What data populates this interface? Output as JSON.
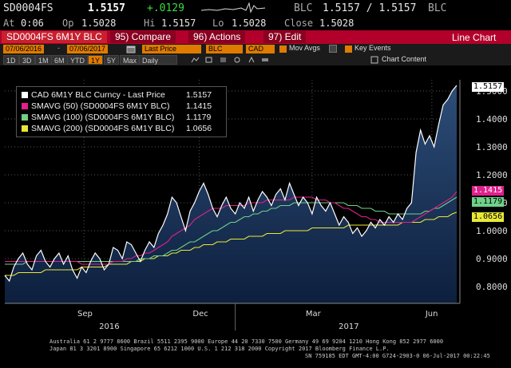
{
  "header": {
    "ticker": "SD0004FS",
    "last": "1.5157",
    "change": "+.0129",
    "source": "BLC",
    "bid_ask": "1.5157 / 1.5157",
    "source2": "BLC",
    "at_label": "At",
    "at_time": "0:06",
    "op_label": "Op",
    "op_val": "1.5028",
    "hi_label": "Hi",
    "hi_val": "1.5157",
    "lo_label": "Lo",
    "lo_val": "1.5028",
    "close_label": "Close",
    "close_val": "1.5028"
  },
  "toolbar": {
    "security": "SD0004FS 6M1Y BLC",
    "compare": "95) Compare",
    "actions": "96) Actions",
    "edit": "97) Edit",
    "view": "Line Chart"
  },
  "controls": {
    "start_date": "07/06/2016",
    "end_date": "07/06/2017",
    "field": "Last Price",
    "source": "BLC",
    "currency": "CAD",
    "mov_avgs": "Mov Avgs",
    "key_events": "Key Events"
  },
  "periods": [
    "1D",
    "3D",
    "1M",
    "6M",
    "YTD",
    "1Y",
    "5Y",
    "Max"
  ],
  "active_period": "1Y",
  "frequency": "Daily",
  "chart_content": "Chart Content",
  "legend": [
    {
      "label": "CAD 6M1Y BLC Curncy - Last Price",
      "value": "1.5157",
      "color": "#ffffff"
    },
    {
      "label": "SMAVG (50) (SD0004FS 6M1Y BLC)",
      "value": "1.1415",
      "color": "#e0208c"
    },
    {
      "label": "SMAVG (100) (SD0004FS 6M1Y BLC)",
      "value": "1.1179",
      "color": "#6fd08a"
    },
    {
      "label": "SMAVG (200) (SD0004FS 6M1Y BLC)",
      "value": "1.0656",
      "color": "#e8e838"
    }
  ],
  "price_tags": [
    {
      "value": "1.5157",
      "bg": "#ffffff",
      "fg": "#000000",
      "y": 1.5157
    },
    {
      "value": "1.1415",
      "bg": "#e0208c",
      "fg": "#ffffff",
      "y": 1.1415
    },
    {
      "value": "1.1179",
      "bg": "#6fd08a",
      "fg": "#000000",
      "y": 1.1179
    },
    {
      "value": "1.0656",
      "bg": "#e8e838",
      "fg": "#000000",
      "y": 1.0656
    }
  ],
  "chart_data": {
    "type": "area",
    "title": "",
    "xlabel": "",
    "ylabel": "",
    "ylim": [
      0.74,
      1.54
    ],
    "yticks": [
      0.8,
      0.9,
      1.0,
      1.1,
      1.2,
      1.3,
      1.4,
      1.5
    ],
    "ytick_labels": [
      "0.8000",
      "0.9000",
      "1.0000",
      "1.1000",
      "1.2000",
      "1.3000",
      "1.4000",
      "1.5000"
    ],
    "month_labels": [
      {
        "label": "Sep",
        "x": 0.175
      },
      {
        "label": "Dec",
        "x": 0.43
      },
      {
        "label": "Mar",
        "x": 0.68
      },
      {
        "label": "Jun",
        "x": 0.945
      }
    ],
    "year_labels": [
      {
        "label": "2016",
        "x": 0.23
      },
      {
        "label": "2017",
        "x": 0.76
      }
    ],
    "x": [
      0,
      0.01,
      0.02,
      0.03,
      0.04,
      0.05,
      0.06,
      0.07,
      0.08,
      0.09,
      0.1,
      0.11,
      0.12,
      0.13,
      0.14,
      0.15,
      0.16,
      0.17,
      0.18,
      0.19,
      0.2,
      0.21,
      0.22,
      0.23,
      0.24,
      0.25,
      0.26,
      0.27,
      0.28,
      0.29,
      0.3,
      0.31,
      0.32,
      0.33,
      0.34,
      0.35,
      0.36,
      0.37,
      0.38,
      0.39,
      0.4,
      0.41,
      0.42,
      0.43,
      0.44,
      0.45,
      0.46,
      0.47,
      0.48,
      0.49,
      0.5,
      0.51,
      0.52,
      0.53,
      0.54,
      0.55,
      0.56,
      0.57,
      0.58,
      0.59,
      0.6,
      0.61,
      0.62,
      0.63,
      0.64,
      0.65,
      0.66,
      0.67,
      0.68,
      0.69,
      0.7,
      0.71,
      0.72,
      0.73,
      0.74,
      0.75,
      0.76,
      0.77,
      0.78,
      0.79,
      0.8,
      0.81,
      0.82,
      0.83,
      0.84,
      0.85,
      0.86,
      0.87,
      0.88,
      0.89,
      0.9,
      0.91,
      0.92,
      0.93,
      0.94,
      0.95,
      0.96,
      0.97,
      0.98,
      0.99,
      1.0
    ],
    "series": [
      {
        "name": "CAD 6M1Y BLC Curncy - Last Price",
        "color": "#ffffff",
        "values": [
          0.84,
          0.82,
          0.87,
          0.9,
          0.92,
          0.88,
          0.86,
          0.91,
          0.93,
          0.89,
          0.87,
          0.9,
          0.92,
          0.88,
          0.91,
          0.86,
          0.83,
          0.87,
          0.85,
          0.89,
          0.92,
          0.9,
          0.86,
          0.88,
          0.94,
          0.93,
          0.9,
          0.96,
          0.95,
          0.92,
          0.89,
          0.93,
          0.96,
          0.94,
          0.99,
          1.02,
          1.06,
          1.12,
          1.1,
          1.05,
          1.0,
          1.07,
          1.1,
          1.14,
          1.17,
          1.13,
          1.08,
          1.05,
          1.09,
          1.12,
          1.08,
          1.06,
          1.1,
          1.08,
          1.12,
          1.07,
          1.11,
          1.14,
          1.12,
          1.09,
          1.13,
          1.15,
          1.11,
          1.17,
          1.13,
          1.09,
          1.12,
          1.1,
          1.06,
          1.12,
          1.09,
          1.07,
          1.1,
          1.06,
          1.02,
          1.05,
          1.03,
          0.99,
          1.01,
          0.98,
          1.0,
          1.03,
          1.01,
          1.04,
          1.02,
          1.05,
          1.03,
          1.06,
          1.04,
          1.08,
          1.1,
          1.28,
          1.36,
          1.31,
          1.34,
          1.3,
          1.38,
          1.45,
          1.47,
          1.5,
          1.52
        ]
      },
      {
        "name": "SMAVG (50) (SD0004FS 6M1Y BLC)",
        "color": "#e0208c",
        "values": [
          0.89,
          0.89,
          0.89,
          0.89,
          0.89,
          0.89,
          0.89,
          0.89,
          0.89,
          0.89,
          0.89,
          0.89,
          0.89,
          0.89,
          0.89,
          0.89,
          0.89,
          0.88,
          0.88,
          0.88,
          0.88,
          0.88,
          0.88,
          0.88,
          0.89,
          0.89,
          0.89,
          0.9,
          0.9,
          0.91,
          0.91,
          0.92,
          0.92,
          0.93,
          0.94,
          0.95,
          0.96,
          0.98,
          0.99,
          1.0,
          1.01,
          1.02,
          1.04,
          1.05,
          1.06,
          1.07,
          1.08,
          1.08,
          1.08,
          1.09,
          1.09,
          1.09,
          1.09,
          1.09,
          1.1,
          1.1,
          1.1,
          1.1,
          1.11,
          1.11,
          1.11,
          1.11,
          1.11,
          1.11,
          1.12,
          1.12,
          1.12,
          1.12,
          1.12,
          1.11,
          1.11,
          1.11,
          1.1,
          1.1,
          1.09,
          1.08,
          1.08,
          1.07,
          1.06,
          1.05,
          1.05,
          1.04,
          1.04,
          1.03,
          1.03,
          1.03,
          1.03,
          1.03,
          1.03,
          1.03,
          1.03,
          1.04,
          1.05,
          1.06,
          1.07,
          1.08,
          1.09,
          1.1,
          1.11,
          1.12,
          1.14
        ]
      },
      {
        "name": "SMAVG (100) (SD0004FS 6M1Y BLC)",
        "color": "#6fd08a",
        "values": [
          0.88,
          0.88,
          0.88,
          0.88,
          0.88,
          0.89,
          0.89,
          0.89,
          0.89,
          0.89,
          0.89,
          0.89,
          0.89,
          0.89,
          0.89,
          0.89,
          0.89,
          0.89,
          0.89,
          0.89,
          0.89,
          0.89,
          0.89,
          0.89,
          0.89,
          0.89,
          0.89,
          0.89,
          0.89,
          0.89,
          0.9,
          0.9,
          0.9,
          0.91,
          0.91,
          0.91,
          0.92,
          0.93,
          0.93,
          0.94,
          0.95,
          0.96,
          0.96,
          0.97,
          0.98,
          0.99,
          1.0,
          1.0,
          1.01,
          1.02,
          1.03,
          1.03,
          1.04,
          1.05,
          1.05,
          1.06,
          1.06,
          1.07,
          1.07,
          1.08,
          1.08,
          1.09,
          1.09,
          1.09,
          1.1,
          1.1,
          1.1,
          1.1,
          1.1,
          1.1,
          1.1,
          1.1,
          1.1,
          1.1,
          1.1,
          1.1,
          1.09,
          1.09,
          1.09,
          1.08,
          1.08,
          1.08,
          1.07,
          1.07,
          1.07,
          1.06,
          1.06,
          1.06,
          1.06,
          1.06,
          1.06,
          1.06,
          1.06,
          1.07,
          1.07,
          1.08,
          1.08,
          1.09,
          1.1,
          1.11,
          1.12
        ]
      },
      {
        "name": "SMAVG (200) (SD0004FS 6M1Y BLC)",
        "color": "#e8e838",
        "values": [
          0.84,
          0.84,
          0.84,
          0.85,
          0.85,
          0.85,
          0.85,
          0.85,
          0.85,
          0.86,
          0.86,
          0.86,
          0.86,
          0.86,
          0.86,
          0.86,
          0.86,
          0.87,
          0.87,
          0.87,
          0.87,
          0.87,
          0.87,
          0.88,
          0.88,
          0.88,
          0.88,
          0.88,
          0.89,
          0.89,
          0.89,
          0.9,
          0.9,
          0.9,
          0.91,
          0.91,
          0.91,
          0.92,
          0.92,
          0.93,
          0.93,
          0.93,
          0.94,
          0.94,
          0.95,
          0.95,
          0.95,
          0.96,
          0.96,
          0.96,
          0.97,
          0.97,
          0.97,
          0.97,
          0.98,
          0.98,
          0.98,
          0.98,
          0.99,
          0.99,
          0.99,
          0.99,
          1.0,
          1.0,
          1.0,
          1.0,
          1.0,
          1.0,
          1.01,
          1.01,
          1.01,
          1.01,
          1.01,
          1.01,
          1.01,
          1.01,
          1.02,
          1.02,
          1.02,
          1.02,
          1.02,
          1.02,
          1.02,
          1.02,
          1.02,
          1.02,
          1.02,
          1.02,
          1.03,
          1.03,
          1.03,
          1.03,
          1.03,
          1.04,
          1.04,
          1.04,
          1.05,
          1.05,
          1.05,
          1.06,
          1.066
        ]
      }
    ],
    "grid": true,
    "legend_position": "top-left"
  },
  "footer": {
    "line1": "Australia 61 2 9777 8600 Brazil 5511 2395 9000 Europe 44 20 7330 7500 Germany 49 69 9204 1210 Hong Kong 852 2977 6000",
    "line2": "Japan 81 3 3201 8900          Singapore 65 6212 1000          U.S. 1 212 318 2000          Copyright 2017 Bloomberg Finance L.P.",
    "line3": "SN 759185 EDT  GMT-4:00 G724-2903-0 06-Jul-2017 00:22:45"
  }
}
